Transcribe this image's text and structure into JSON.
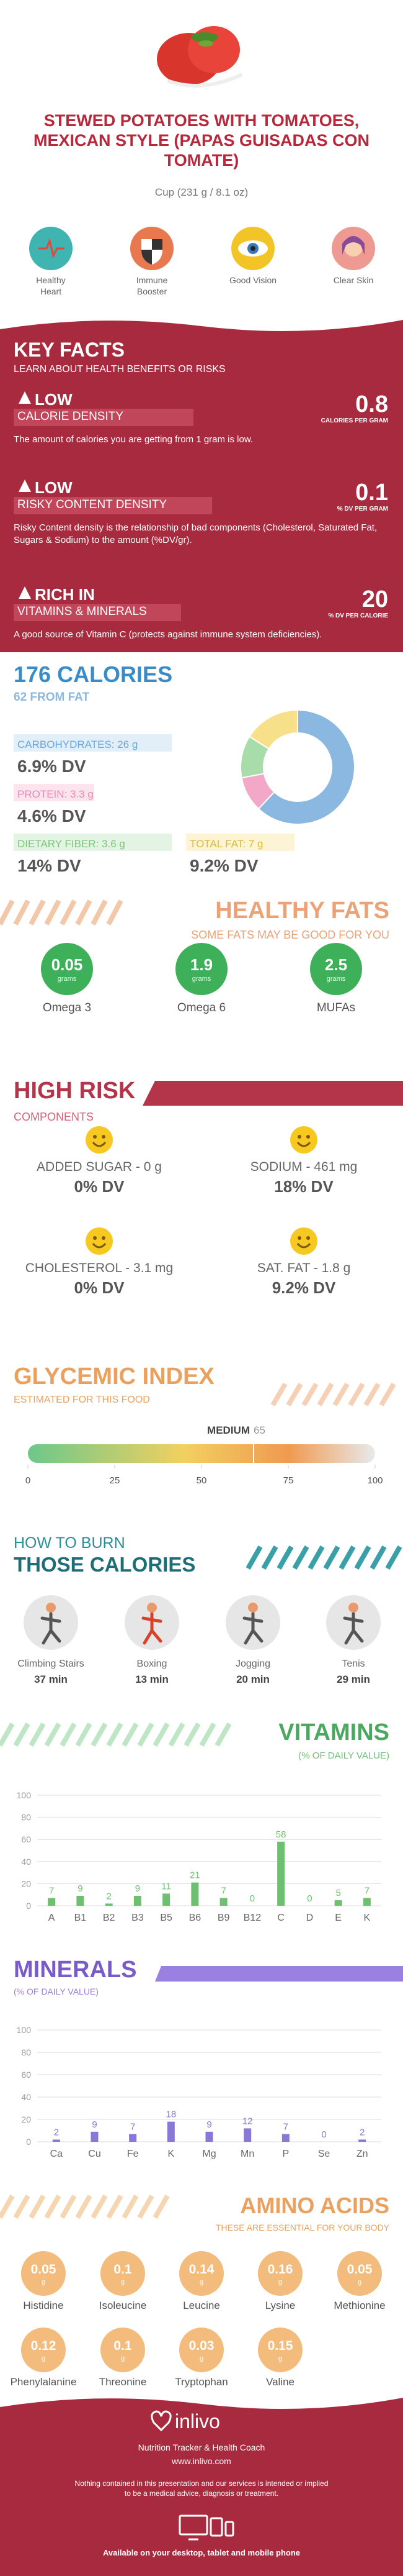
{
  "header": {
    "title": "STEWED POTATOES WITH TOMATOES, MEXICAN STYLE (PAPAS GUISADAS CON TOMATE)",
    "serving": "Cup (231 g / 8.1 oz)"
  },
  "benefits": [
    "Healthy Heart",
    "Immune Booster",
    "Good Vision",
    "Clear Skin"
  ],
  "key_facts": {
    "title": "KEY FACTS",
    "subtitle": "LEARN ABOUT HEALTH BENEFITS OR RISKS",
    "items": [
      {
        "level": "LOW",
        "name": "CALORIE DENSITY",
        "value": "0.8",
        "unit": "CALORIES PER GRAM",
        "text": "The amount of calories you are getting from 1 gram is low."
      },
      {
        "level": "LOW",
        "name": "RISKY CONTENT DENSITY",
        "value": "0.1",
        "unit": "% DV PER GRAM",
        "text": "Risky Content density is the relationship of bad components (Cholesterol, Saturated Fat, Sugars & Sodium) to the amount (%DV/gr)."
      },
      {
        "level": "RICH IN",
        "name": "VITAMINS & MINERALS",
        "value": "20",
        "unit": "% DV PER CALORIE",
        "text": "A good source of Vitamin C (protects against immune system deficiencies)."
      }
    ]
  },
  "calories": {
    "title": "176 CALORIES",
    "subtitle": "62 FROM FAT",
    "nutrients": [
      {
        "name": "CARBOHYDRATES: 26 g",
        "dv": "6.9% DV"
      },
      {
        "name": "PROTEIN: 3.3 g",
        "dv": "4.6% DV"
      },
      {
        "name": "DIETARY FIBER: 3.6 g",
        "dv": "14% DV"
      },
      {
        "name": "TOTAL FAT: 7 g",
        "dv": "9.2% DV"
      }
    ]
  },
  "healthy_fats": {
    "title": "HEALTHY FATS",
    "subtitle": "SOME FATS MAY BE GOOD FOR YOU",
    "unit": "grams",
    "items": [
      {
        "value": "0.05",
        "name": "Omega 3"
      },
      {
        "value": "1.9",
        "name": "Omega 6"
      },
      {
        "value": "2.5",
        "name": "MUFAs"
      }
    ]
  },
  "high_risk": {
    "title": "HIGH RISK",
    "subtitle": "COMPONENTS",
    "items": [
      {
        "name": "ADDED SUGAR - 0 g",
        "dv": "0% DV"
      },
      {
        "name": "SODIUM - 461 mg",
        "dv": "18% DV"
      },
      {
        "name": "CHOLESTEROL - 3.1 mg",
        "dv": "0% DV"
      },
      {
        "name": "SAT. FAT - 1.8 g",
        "dv": "9.2% DV"
      }
    ]
  },
  "glycemic": {
    "title": "GLYCEMIC INDEX",
    "subtitle": "ESTIMATED FOR THIS FOOD",
    "level": "MEDIUM",
    "value": 65,
    "xlim": [
      0,
      100
    ],
    "xticks": [
      0,
      25,
      50,
      75,
      100
    ]
  },
  "burn": {
    "title_top": "HOW TO BURN",
    "title": "THOSE CALORIES",
    "items": [
      {
        "name": "Climbing Stairs",
        "time": "37 min"
      },
      {
        "name": "Boxing",
        "time": "13 min"
      },
      {
        "name": "Jogging",
        "time": "20 min"
      },
      {
        "name": "Tenis",
        "time": "29 min"
      }
    ]
  },
  "chart_data": [
    {
      "type": "bar",
      "title": "VITAMINS",
      "subtitle": "(% OF DAILY VALUE)",
      "color": "#6cc070",
      "categories": [
        "A",
        "B1",
        "B2",
        "B3",
        "B5",
        "B6",
        "B9",
        "B12",
        "C",
        "D",
        "E",
        "K"
      ],
      "values": [
        7,
        9,
        2,
        9,
        11,
        21,
        7,
        0,
        58,
        0,
        5,
        7
      ],
      "ylim": [
        0,
        100
      ],
      "yticks": [
        0,
        20,
        40,
        60,
        80,
        100
      ],
      "grid": true
    },
    {
      "type": "bar",
      "title": "MINERALS",
      "subtitle": "(% OF DAILY VALUE)",
      "color": "#8a78d8",
      "categories": [
        "Ca",
        "Cu",
        "Fe",
        "K",
        "Mg",
        "Mn",
        "P",
        "Se",
        "Zn"
      ],
      "values": [
        2,
        9,
        7,
        18,
        9,
        12,
        7,
        0,
        2
      ],
      "ylim": [
        0,
        100
      ],
      "yticks": [
        0,
        20,
        40,
        60,
        80,
        100
      ],
      "grid": true
    },
    {
      "type": "pie",
      "values": [
        62,
        10,
        12,
        16
      ],
      "colors": [
        "#8ab8e0",
        "#f4a8c8",
        "#a8dca8",
        "#f8e08a"
      ]
    }
  ],
  "amino_acids": {
    "title": "AMINO ACIDS",
    "subtitle": "THESE ARE ESSENTIAL FOR YOUR BODY",
    "unit": "g",
    "items": [
      {
        "value": "0.05",
        "name": "Histidine"
      },
      {
        "value": "0.1",
        "name": "Isoleucine"
      },
      {
        "value": "0.14",
        "name": "Leucine"
      },
      {
        "value": "0.16",
        "name": "Lysine"
      },
      {
        "value": "0.05",
        "name": "Methionine"
      },
      {
        "value": "0.12",
        "name": "Phenylalanine"
      },
      {
        "value": "0.1",
        "name": "Threonine"
      },
      {
        "value": "0.03",
        "name": "Tryptophan"
      },
      {
        "value": "0.15",
        "name": "Valine"
      }
    ]
  },
  "footer": {
    "brand": "inlivo",
    "tagline": "Nutrition Tracker & Health Coach",
    "url": "www.inlivo.com",
    "disclaimer": "Nothing contained in this presentation and our services is intended or implied to be a medical advice, diagnosis or treatment.",
    "available": "Available on your desktop, tablet and mobile phone"
  }
}
